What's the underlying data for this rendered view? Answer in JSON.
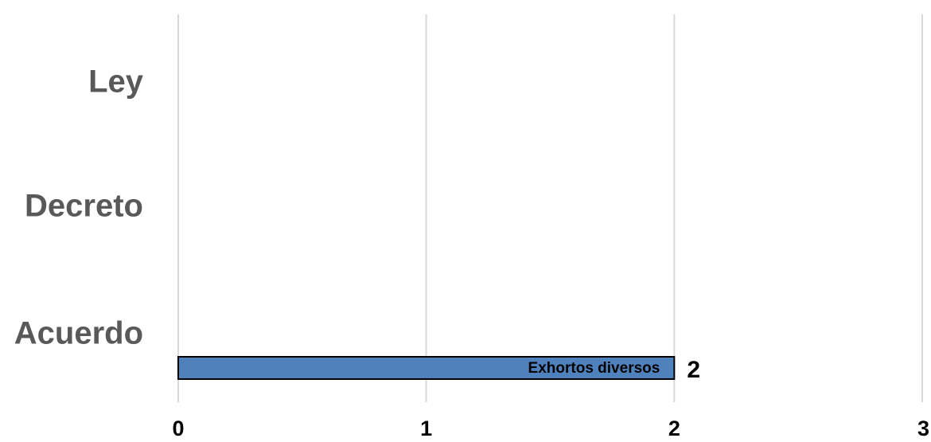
{
  "chart_data": {
    "type": "bar",
    "orientation": "horizontal",
    "categories": [
      "Ley",
      "Decreto",
      "Acuerdo"
    ],
    "series": [
      {
        "values": [
          null,
          null,
          2
        ],
        "color": "#4F81BD"
      }
    ],
    "bar_annotations": [
      {
        "category": "Acuerdo",
        "text": "Exhortos diversos"
      }
    ],
    "data_labels": [
      {
        "category": "Acuerdo",
        "text": "2"
      }
    ],
    "x_ticks": [
      "0",
      "1",
      "2",
      "3"
    ],
    "xlim": [
      0,
      3
    ],
    "grid": "vertical",
    "title": "",
    "xlabel": "",
    "ylabel": ""
  }
}
